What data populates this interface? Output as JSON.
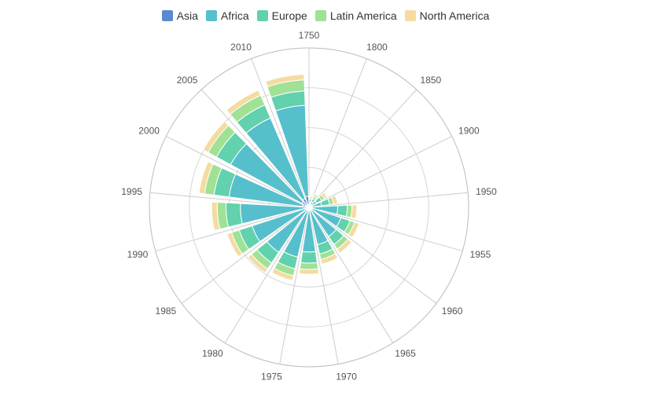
{
  "chart_data": {
    "type": "bar",
    "subtype": "polar-stacked",
    "title": "",
    "categories": [
      "1750",
      "1800",
      "1850",
      "1900",
      "1950",
      "1955",
      "1960",
      "1965",
      "1970",
      "1975",
      "1980",
      "1985",
      "1990",
      "1995",
      "2000",
      "2005",
      "2010"
    ],
    "series": [
      {
        "name": "Asia",
        "color": "#5b8ad0",
        "values": [
          5,
          4,
          4,
          4,
          4,
          4,
          4,
          4,
          4,
          4,
          4,
          5,
          6,
          8,
          10,
          12,
          14
        ]
      },
      {
        "name": "Africa",
        "color": "#56bfcc",
        "values": [
          2,
          4,
          7,
          12,
          32,
          38,
          40,
          44,
          52,
          60,
          64,
          70,
          80,
          93,
          102,
          110,
          114
        ]
      },
      {
        "name": "Europe",
        "color": "#62d1ad",
        "values": [
          3,
          4,
          7,
          10,
          12,
          12,
          12,
          12,
          14,
          15,
          16,
          17,
          18,
          19,
          20,
          18,
          18
        ]
      },
      {
        "name": "Latin America",
        "color": "#a0e196",
        "values": [
          2,
          3,
          4,
          5,
          6,
          6,
          7,
          7,
          8,
          9,
          9,
          10,
          11,
          12,
          12,
          13,
          14
        ]
      },
      {
        "name": "North America",
        "color": "#f4dba0",
        "values": [
          2,
          3,
          4,
          5,
          6,
          6,
          6,
          6,
          6,
          6,
          6,
          6,
          7,
          7,
          7,
          7,
          7
        ]
      }
    ],
    "radius_axis": {
      "rings": 4,
      "max": 200
    },
    "angle_axis": {
      "start_angle": 90,
      "clockwise": true,
      "split_lines": true
    },
    "legend_position": "top"
  },
  "legend": {
    "items": [
      {
        "label": "Asia",
        "color": "#5b8ad0"
      },
      {
        "label": "Africa",
        "color": "#56bfcc"
      },
      {
        "label": "Europe",
        "color": "#62d1ad"
      },
      {
        "label": "Latin America",
        "color": "#a0e196"
      },
      {
        "label": "North America",
        "color": "#f4dba0"
      }
    ]
  }
}
